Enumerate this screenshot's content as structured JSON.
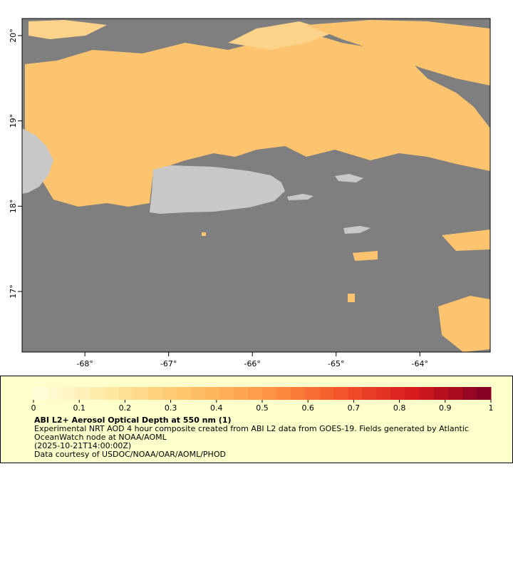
{
  "map": {
    "lonlim": [
      -68.75,
      -63.16
    ],
    "latlim": [
      16.29,
      20.2
    ],
    "lon_ticks": [
      {
        "value": -68,
        "label": "-68°"
      },
      {
        "value": -67,
        "label": "-67°"
      },
      {
        "value": -66,
        "label": "-66°"
      },
      {
        "value": -65,
        "label": "-65°"
      },
      {
        "value": -64,
        "label": "-64°"
      }
    ],
    "lat_ticks": [
      {
        "value": 20,
        "label": "20°"
      },
      {
        "value": 19,
        "label": "19°"
      },
      {
        "value": 18,
        "label": "18°"
      },
      {
        "value": 17,
        "label": "17°"
      }
    ]
  },
  "colorbar": {
    "range": [
      0,
      1
    ],
    "ticks": [
      0,
      0.1,
      0.2,
      0.3,
      0.4,
      0.5,
      0.6,
      0.7,
      0.8,
      0.9,
      1
    ],
    "colors": [
      "#ffffe0",
      "#fee8a0",
      "#fdc46a",
      "#fd9a44",
      "#f4562a",
      "#d7191c",
      "#800026"
    ]
  },
  "caption": {
    "title": "ABI L2+ Aerosol Optical Depth at 550 nm (1)",
    "lines": [
      "Experimental NRT AOD 4 hour composite created from ABI L2 data from GOES-19. Fields generated by Atlantic",
      "OceanWatch node at NOAA/AOML",
      "(2025-10-21T14:00:00Z)",
      "Data courtesy of USDOC/NOAA/OAR/AOML/PHOD"
    ]
  }
}
